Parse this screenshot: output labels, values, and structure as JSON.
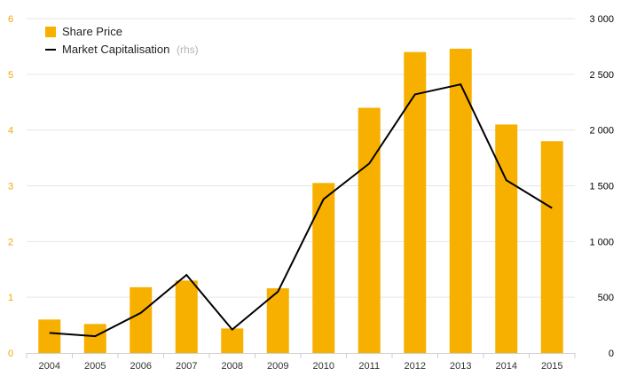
{
  "chart_data": {
    "type": "bar",
    "categories": [
      "2004",
      "2005",
      "2006",
      "2007",
      "2008",
      "2009",
      "2010",
      "2011",
      "2012",
      "2013",
      "2014",
      "2015"
    ],
    "series": [
      {
        "name": "Share Price",
        "type": "bar",
        "axis": "left",
        "color": "#f8b000",
        "values": [
          0.6,
          0.52,
          1.18,
          1.3,
          0.44,
          1.16,
          3.05,
          4.4,
          5.4,
          5.46,
          4.1,
          3.8
        ]
      },
      {
        "name": "Market Capitalisation",
        "type": "line",
        "axis": "right",
        "color": "#000000",
        "values": [
          180,
          150,
          360,
          700,
          210,
          550,
          1380,
          1700,
          2320,
          2410,
          1550,
          1300
        ]
      }
    ],
    "legend_note": "(rhs)",
    "y_left": {
      "min": 0,
      "max": 6,
      "ticks": [
        "0",
        "1",
        "2",
        "3",
        "4",
        "5",
        "6"
      ]
    },
    "y_right": {
      "min": 0,
      "max": 3000,
      "ticks": [
        "0",
        "500",
        "1 000",
        "1 500",
        "2 000",
        "2 500",
        "3 000"
      ]
    },
    "legend_position": "top-left",
    "grid": true
  }
}
